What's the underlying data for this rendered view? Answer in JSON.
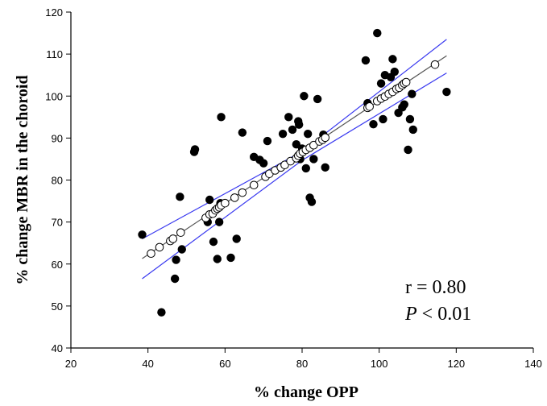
{
  "chart_data": {
    "type": "scatter",
    "xlabel": "% change OPP",
    "ylabel": "% change MBR in the choroid",
    "xlim": [
      20,
      140
    ],
    "ylim": [
      40,
      120
    ],
    "xticks": [
      20,
      40,
      60,
      80,
      100,
      120,
      140
    ],
    "yticks": [
      40,
      50,
      60,
      70,
      80,
      90,
      100,
      110,
      120
    ],
    "grid": false,
    "colors": {
      "observed": "#000000",
      "fitted_marker": "#ffffff",
      "fit_line": "#555555",
      "ci_lines": "#3a3af0"
    },
    "annotations": {
      "r_text": "r = 0.80",
      "p_symbol": "P",
      "p_rest": " < 0.01"
    },
    "series": [
      {
        "kind": "observed",
        "points": [
          [
            38.5,
            67
          ],
          [
            43.5,
            48.5
          ],
          [
            47,
            56.5
          ],
          [
            47.3,
            61
          ],
          [
            48.3,
            76
          ],
          [
            48.8,
            63.5
          ],
          [
            52,
            86.7
          ],
          [
            52.2,
            87.3
          ],
          [
            55.5,
            70
          ],
          [
            56,
            75.3
          ],
          [
            57,
            65.3
          ],
          [
            58,
            61.2
          ],
          [
            58.5,
            70
          ],
          [
            58.8,
            74.5
          ],
          [
            59,
            95
          ],
          [
            61.5,
            61.5
          ],
          [
            63,
            66
          ],
          [
            64.5,
            91.3
          ],
          [
            67.5,
            85.5
          ],
          [
            69,
            84.8
          ],
          [
            70,
            84
          ],
          [
            71,
            89.3
          ],
          [
            75,
            91
          ],
          [
            76.5,
            95
          ],
          [
            77.5,
            92
          ],
          [
            78.5,
            88.5
          ],
          [
            79,
            94
          ],
          [
            79.2,
            93.2
          ],
          [
            79.5,
            85
          ],
          [
            80,
            87.5
          ],
          [
            80.5,
            100
          ],
          [
            81,
            82.8
          ],
          [
            81.5,
            91
          ],
          [
            82,
            75.8
          ],
          [
            82.5,
            74.8
          ],
          [
            83,
            85
          ],
          [
            84,
            99.3
          ],
          [
            85.5,
            90.8
          ],
          [
            86,
            83
          ],
          [
            96.5,
            108.5
          ],
          [
            97,
            98.3
          ],
          [
            98.5,
            93.3
          ],
          [
            99.5,
            115
          ],
          [
            100.5,
            103
          ],
          [
            101,
            94.5
          ],
          [
            101.5,
            105
          ],
          [
            103,
            104.5
          ],
          [
            103.5,
            108.8
          ],
          [
            104,
            105.8
          ],
          [
            105,
            96
          ],
          [
            106,
            97.3
          ],
          [
            106.5,
            98
          ],
          [
            107.5,
            87.2
          ],
          [
            108,
            94.5
          ],
          [
            108.5,
            100.5
          ],
          [
            108.8,
            92
          ],
          [
            117.5,
            101
          ]
        ]
      },
      {
        "kind": "fitted",
        "points": [
          [
            40.8,
            62.5
          ],
          [
            43,
            64
          ],
          [
            45.8,
            65.5
          ],
          [
            46.5,
            66
          ],
          [
            48.5,
            67.5
          ],
          [
            55,
            71
          ],
          [
            56,
            71.8
          ],
          [
            56.8,
            72
          ],
          [
            57.5,
            72.8
          ],
          [
            58,
            73.2
          ],
          [
            58.5,
            73.5
          ],
          [
            59,
            74
          ],
          [
            60,
            74.5
          ],
          [
            62.5,
            75.8
          ],
          [
            64.5,
            77
          ],
          [
            67.5,
            78.8
          ],
          [
            70.5,
            80.8
          ],
          [
            71.5,
            81.5
          ],
          [
            73,
            82.3
          ],
          [
            74.5,
            83
          ],
          [
            75.5,
            83.6
          ],
          [
            77,
            84.5
          ],
          [
            78.5,
            85.2
          ],
          [
            79,
            85.8
          ],
          [
            79.5,
            86.3
          ],
          [
            80.2,
            86.7
          ],
          [
            81,
            87.2
          ],
          [
            82,
            87.7
          ],
          [
            83,
            88.3
          ],
          [
            84.5,
            89.2
          ],
          [
            85.3,
            89.6
          ],
          [
            86,
            90.1
          ],
          [
            97,
            97.2
          ],
          [
            97.5,
            97.5
          ],
          [
            99.5,
            98.8
          ],
          [
            100.5,
            99.4
          ],
          [
            101.5,
            99.9
          ],
          [
            102.5,
            100.5
          ],
          [
            103.5,
            101
          ],
          [
            104.5,
            101.7
          ],
          [
            105.2,
            102
          ],
          [
            106,
            102.6
          ],
          [
            106.5,
            103
          ],
          [
            107,
            103.3
          ],
          [
            114.5,
            107.5
          ]
        ]
      }
    ],
    "fit_line": {
      "x": [
        38.5,
        117.5
      ],
      "y": [
        61.3,
        109.6
      ]
    },
    "ci_upper": {
      "x": [
        38.5,
        80,
        117.5
      ],
      "y": [
        66,
        86.8,
        113.5
      ]
    },
    "ci_lower": {
      "x": [
        38.5,
        80,
        117.5
      ],
      "y": [
        56.5,
        84.7,
        105.5
      ]
    }
  }
}
